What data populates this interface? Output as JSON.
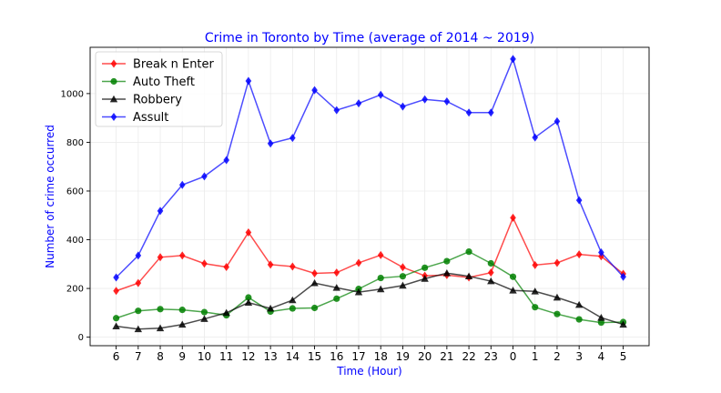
{
  "chart_data": {
    "type": "line",
    "title": "Crime in Toronto by Time (average of 2014 ~ 2019)",
    "xlabel": "Time (Hour)",
    "ylabel": "Number of crime occurred",
    "categories": [
      "6",
      "7",
      "8",
      "9",
      "10",
      "11",
      "12",
      "13",
      "14",
      "15",
      "16",
      "17",
      "18",
      "19",
      "20",
      "21",
      "22",
      "23",
      "0",
      "1",
      "2",
      "3",
      "4",
      "5"
    ],
    "ylim": [
      -35,
      1190
    ],
    "yticks": [
      0,
      200,
      400,
      600,
      800,
      1000
    ],
    "grid": true,
    "legend_position": "top-left",
    "series": [
      {
        "name": "Break n Enter",
        "color": "#ff0000",
        "marker": "diamond",
        "values": [
          190,
          222,
          328,
          335,
          302,
          288,
          430,
          298,
          290,
          262,
          265,
          305,
          337,
          287,
          252,
          255,
          245,
          265,
          490,
          296,
          305,
          340,
          332,
          260
        ]
      },
      {
        "name": "Auto Theft",
        "color": "#008000",
        "marker": "circle",
        "values": [
          78,
          108,
          115,
          112,
          103,
          90,
          163,
          105,
          118,
          120,
          158,
          198,
          243,
          250,
          285,
          312,
          351,
          303,
          248,
          123,
          95,
          73,
          60,
          62
        ]
      },
      {
        "name": "Robbery",
        "color": "#000000",
        "marker": "triangle",
        "values": [
          45,
          33,
          37,
          52,
          75,
          100,
          142,
          118,
          152,
          222,
          203,
          185,
          197,
          212,
          240,
          263,
          250,
          230,
          192,
          188,
          163,
          133,
          80,
          52
        ]
      },
      {
        "name": "Assult",
        "color": "#0000ff",
        "marker": "diamond",
        "values": [
          245,
          335,
          518,
          625,
          660,
          727,
          1052,
          795,
          818,
          1014,
          932,
          960,
          995,
          947,
          976,
          968,
          922,
          922,
          1142,
          820,
          886,
          562,
          348,
          248
        ]
      }
    ]
  }
}
